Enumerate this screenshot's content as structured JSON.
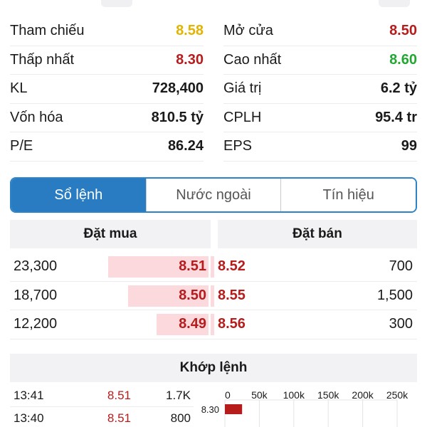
{
  "stats": [
    {
      "label": "Tham chiếu",
      "value": "8.58",
      "color": "#e0b400"
    },
    {
      "label": "Mở cửa",
      "value": "8.50",
      "color": "#b71c1c"
    },
    {
      "label": "Thấp nhất",
      "value": "8.30",
      "color": "#b71c1c"
    },
    {
      "label": "Cao nhất",
      "value": "8.60",
      "color": "#22a832"
    },
    {
      "label": "KL",
      "value": "728,400",
      "color": "#1a1a1a"
    },
    {
      "label": "Giá trị",
      "value": "6.2 tỷ",
      "color": "#1a1a1a"
    },
    {
      "label": "Vốn hóa",
      "value": "810.5 tỷ",
      "color": "#1a1a1a"
    },
    {
      "label": "CPLH",
      "value": "95.4 tr",
      "color": "#1a1a1a"
    },
    {
      "label": "P/E",
      "value": "86.24",
      "color": "#1a1a1a"
    },
    {
      "label": "EPS",
      "value": "99",
      "color": "#1a1a1a"
    }
  ],
  "tabs": [
    {
      "label": "Sổ lệnh",
      "active": true
    },
    {
      "label": "Nước ngoài",
      "active": false
    },
    {
      "label": "Tín hiệu",
      "active": false
    }
  ],
  "orderbook": {
    "bid_header": "Đặt mua",
    "ask_header": "Đặt bán",
    "rows": [
      {
        "bid_vol": "23,300",
        "bid_price": "8.51",
        "bid_share": 0.5,
        "ask_price": "8.52",
        "ask_vol": "700"
      },
      {
        "bid_vol": "18,700",
        "bid_price": "8.50",
        "bid_share": 0.4,
        "ask_price": "8.55",
        "ask_vol": "1,500"
      },
      {
        "bid_vol": "12,200",
        "bid_price": "8.49",
        "bid_share": 0.26,
        "ask_price": "8.56",
        "ask_vol": "300"
      }
    ]
  },
  "matched": {
    "header": "Khớp lệnh",
    "rows": [
      {
        "time": "13:41",
        "price": "8.51",
        "vol": "1.7K"
      },
      {
        "time": "13:40",
        "price": "8.51",
        "vol": "800"
      }
    ]
  },
  "chart_data": {
    "type": "bar",
    "orientation": "horizontal",
    "x_ticks": [
      "0",
      "50k",
      "100k",
      "150k",
      "200k",
      "250k"
    ],
    "xlim": [
      0,
      250000
    ],
    "categories": [
      "8.30"
    ],
    "values": [
      25000
    ],
    "bar_color": "#b71c1c",
    "grid": true
  }
}
